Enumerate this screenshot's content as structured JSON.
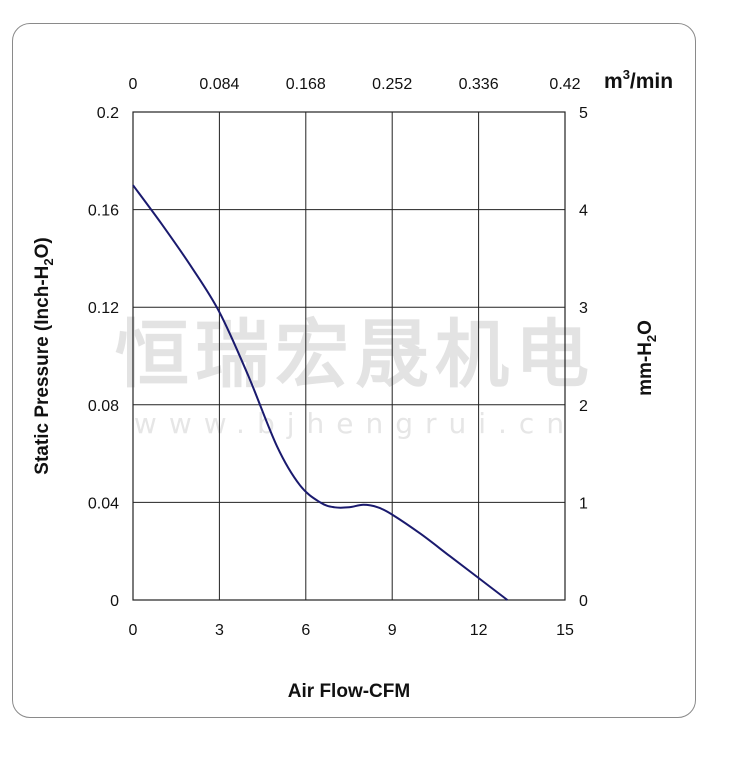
{
  "watermark": {
    "text_cn": "恒瑞宏晟机电",
    "text_url": "www.bjhengrui.cn"
  },
  "chart_data": {
    "type": "line",
    "xlabel": "Air Flow-CFM",
    "ylabel_left": [
      "Static Pressure (Inch-H",
      "2",
      "O)"
    ],
    "ylabel_right": [
      "mm-H",
      "2",
      "O"
    ],
    "top_unit": [
      "m",
      "3",
      "/min"
    ],
    "xlim": [
      0,
      15
    ],
    "ylim": [
      0,
      0.2
    ],
    "x_ticks": [
      "0",
      "3",
      "6",
      "9",
      "12",
      "15"
    ],
    "y_ticks": [
      "0",
      "0.04",
      "0.08",
      "0.12",
      "0.16",
      "0.2"
    ],
    "top_ticks": [
      "0",
      "0.084",
      "0.168",
      "0.252",
      "0.336",
      "0.42"
    ],
    "right_ticks": [
      "0",
      "1",
      "2",
      "3",
      "4",
      "5"
    ],
    "grid": true,
    "line_color": "#1a1a6e",
    "series": [
      {
        "x": [
          0,
          1,
          2,
          3,
          4,
          5,
          5.8,
          6.5,
          7,
          7.5,
          8,
          8.5,
          9,
          10,
          11,
          12,
          13
        ],
        "y": [
          0.17,
          0.154,
          0.137,
          0.118,
          0.092,
          0.063,
          0.047,
          0.04,
          0.038,
          0.038,
          0.039,
          0.038,
          0.035,
          0.027,
          0.018,
          0.009,
          0.0
        ]
      }
    ]
  }
}
